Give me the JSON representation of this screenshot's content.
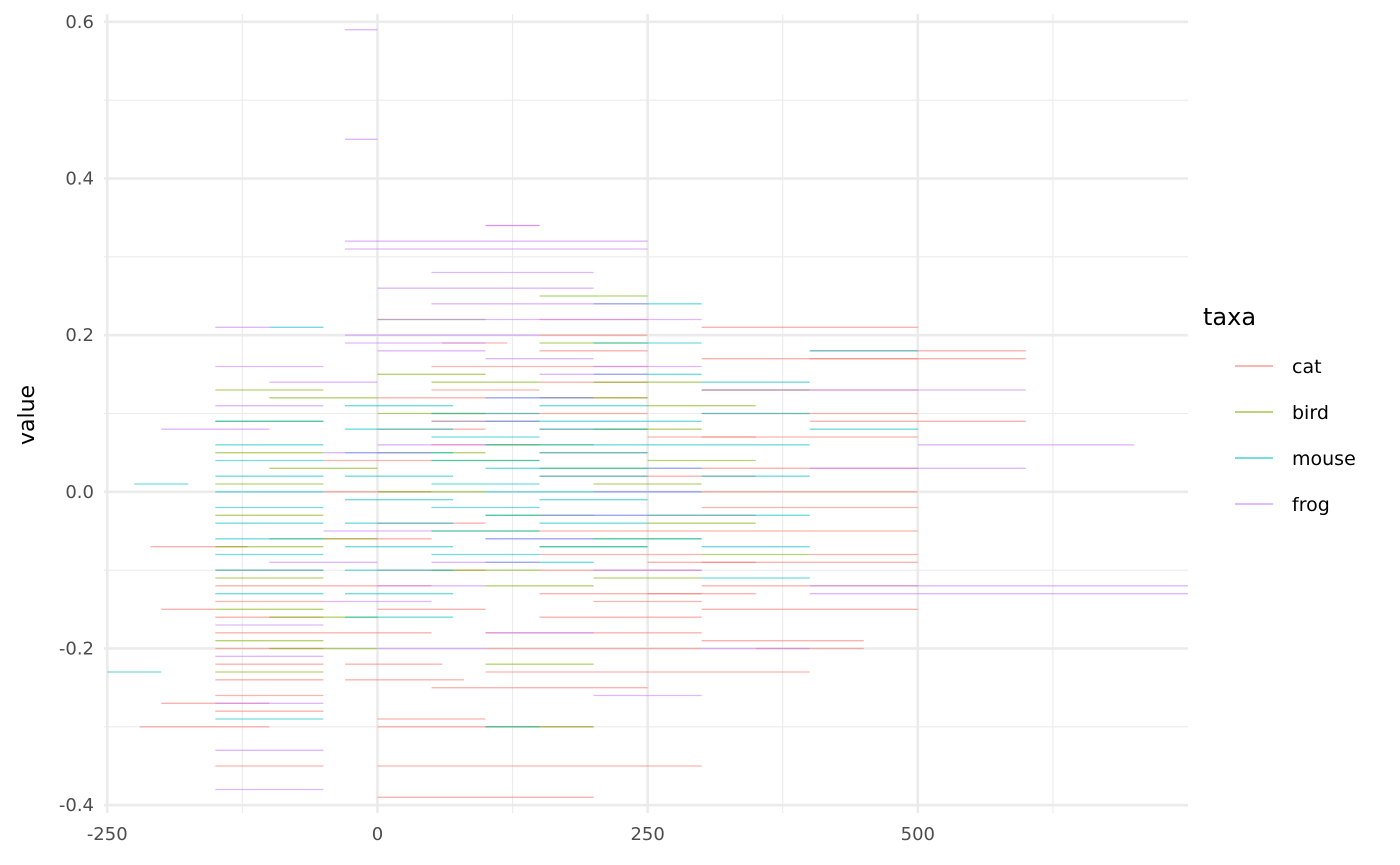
{
  "chart_data": {
    "type": "line",
    "title": "",
    "xlabel": "",
    "ylabel": "value",
    "xlim": [
      -253,
      750
    ],
    "ylim": [
      -0.41,
      0.61
    ],
    "x_ticks": [
      -250,
      0,
      250,
      500
    ],
    "x_tick_labels": [
      "-250",
      "0",
      "250",
      "500"
    ],
    "x_minor_ticks": [
      -125,
      125,
      375,
      625
    ],
    "y_ticks": [
      -0.4,
      -0.2,
      0.0,
      0.2,
      0.4,
      0.6
    ],
    "y_tick_labels": [
      "-0.4",
      "-0.2",
      "0.0",
      "0.2",
      "0.4",
      "0.6"
    ],
    "y_minor_ticks": [
      -0.3,
      -0.1,
      0.1,
      0.3,
      0.5
    ],
    "grid": true,
    "legend": {
      "title": "taxa",
      "position": "right"
    },
    "series": [
      {
        "name": "cat",
        "color": "#F8766D",
        "segments": [
          [
            -150,
            -50,
            -0.28
          ],
          [
            -150,
            -50,
            -0.26
          ],
          [
            -150,
            -50,
            -0.24
          ],
          [
            -150,
            -50,
            -0.22
          ],
          [
            -150,
            -50,
            -0.2
          ],
          [
            -150,
            -50,
            -0.18
          ],
          [
            -150,
            -50,
            -0.16
          ],
          [
            -150,
            -50,
            -0.14
          ],
          [
            -150,
            -50,
            -0.12
          ],
          [
            -150,
            -50,
            -0.1
          ],
          [
            -200,
            -100,
            -0.27
          ],
          [
            -220,
            -100,
            -0.3
          ],
          [
            -150,
            -50,
            -0.35
          ],
          [
            -200,
            -150,
            -0.15
          ],
          [
            -210,
            -120,
            -0.07
          ],
          [
            -30,
            80,
            -0.24
          ],
          [
            -30,
            60,
            -0.22
          ],
          [
            0,
            300,
            -0.35
          ],
          [
            0,
            200,
            -0.39
          ],
          [
            0,
            100,
            -0.29
          ],
          [
            0,
            200,
            -0.3
          ],
          [
            50,
            250,
            -0.25
          ],
          [
            100,
            300,
            -0.23
          ],
          [
            100,
            300,
            -0.2
          ],
          [
            100,
            300,
            -0.18
          ],
          [
            150,
            300,
            -0.16
          ],
          [
            150,
            300,
            -0.13
          ],
          [
            150,
            300,
            -0.1
          ],
          [
            150,
            300,
            -0.08
          ],
          [
            150,
            300,
            -0.05
          ],
          [
            150,
            250,
            0.02
          ],
          [
            150,
            250,
            0.05
          ],
          [
            150,
            250,
            0.08
          ],
          [
            150,
            250,
            0.1
          ],
          [
            150,
            250,
            0.12
          ],
          [
            150,
            250,
            0.14
          ],
          [
            150,
            250,
            0.16
          ],
          [
            150,
            250,
            0.18
          ],
          [
            150,
            250,
            0.2
          ],
          [
            150,
            250,
            0.22
          ],
          [
            50,
            150,
            0.06
          ],
          [
            50,
            150,
            0.1
          ],
          [
            50,
            150,
            0.13
          ],
          [
            50,
            150,
            0.16
          ],
          [
            60,
            120,
            0.19
          ],
          [
            300,
            500,
            0.21
          ],
          [
            300,
            500,
            0.17
          ],
          [
            300,
            500,
            0.13
          ],
          [
            300,
            500,
            0.1
          ],
          [
            300,
            500,
            0.07
          ],
          [
            300,
            500,
            0.03
          ],
          [
            300,
            500,
            0.0
          ],
          [
            300,
            500,
            -0.02
          ],
          [
            300,
            500,
            -0.05
          ],
          [
            300,
            500,
            -0.09
          ],
          [
            300,
            500,
            -0.12
          ],
          [
            300,
            500,
            -0.15
          ],
          [
            300,
            450,
            -0.19
          ],
          [
            350,
            450,
            -0.2
          ],
          [
            400,
            600,
            0.18
          ],
          [
            400,
            600,
            0.17
          ],
          [
            400,
            600,
            0.09
          ],
          [
            400,
            500,
            -0.08
          ],
          [
            300,
            400,
            -0.23
          ],
          [
            200,
            300,
            -0.14
          ],
          [
            -50,
            50,
            -0.18
          ],
          [
            -50,
            50,
            -0.12
          ],
          [
            -50,
            50,
            -0.06
          ],
          [
            -50,
            50,
            0.0
          ],
          [
            -50,
            50,
            0.04
          ],
          [
            250,
            350,
            0.07
          ],
          [
            250,
            350,
            0.02
          ],
          [
            250,
            350,
            -0.03
          ],
          [
            250,
            350,
            -0.09
          ],
          [
            250,
            350,
            -0.13
          ],
          [
            0,
            100,
            0.12
          ],
          [
            0,
            100,
            0.08
          ],
          [
            0,
            100,
            -0.04
          ],
          [
            0,
            100,
            -0.1
          ],
          [
            0,
            100,
            -0.15
          ]
        ]
      },
      {
        "name": "bird",
        "color": "#7CAE00",
        "segments": [
          [
            -150,
            -50,
            -0.23
          ],
          [
            -150,
            -50,
            -0.19
          ],
          [
            -150,
            -50,
            -0.15
          ],
          [
            -150,
            -50,
            -0.11
          ],
          [
            -150,
            -50,
            -0.07
          ],
          [
            -150,
            -50,
            -0.03
          ],
          [
            -150,
            -50,
            0.01
          ],
          [
            -150,
            -50,
            0.05
          ],
          [
            -150,
            -50,
            0.09
          ],
          [
            -150,
            -50,
            0.13
          ],
          [
            0,
            100,
            0.22
          ],
          [
            0,
            100,
            0.15
          ],
          [
            0,
            100,
            0.1
          ],
          [
            0,
            100,
            0.05
          ],
          [
            0,
            100,
            0.0
          ],
          [
            50,
            150,
            -0.05
          ],
          [
            50,
            150,
            -0.1
          ],
          [
            50,
            150,
            0.04
          ],
          [
            50,
            150,
            0.09
          ],
          [
            50,
            150,
            0.14
          ],
          [
            100,
            200,
            -0.3
          ],
          [
            100,
            200,
            -0.22
          ],
          [
            100,
            200,
            -0.12
          ],
          [
            100,
            200,
            -0.03
          ],
          [
            100,
            200,
            0.06
          ],
          [
            150,
            250,
            0.25
          ],
          [
            150,
            250,
            0.19
          ],
          [
            150,
            250,
            0.12
          ],
          [
            150,
            250,
            0.03
          ],
          [
            150,
            250,
            -0.07
          ],
          [
            200,
            300,
            0.14
          ],
          [
            200,
            300,
            0.08
          ],
          [
            200,
            300,
            0.01
          ],
          [
            200,
            300,
            -0.06
          ],
          [
            200,
            300,
            -0.11
          ],
          [
            250,
            350,
            0.11
          ],
          [
            250,
            350,
            0.04
          ],
          [
            250,
            350,
            -0.04
          ],
          [
            300,
            400,
            0.13
          ],
          [
            300,
            400,
            -0.08
          ],
          [
            -100,
            0,
            0.12
          ],
          [
            -100,
            0,
            0.03
          ],
          [
            -100,
            0,
            -0.06
          ],
          [
            -100,
            0,
            -0.16
          ],
          [
            -100,
            0,
            -0.2
          ]
        ]
      },
      {
        "name": "mouse",
        "color": "#00BFC4",
        "segments": [
          [
            -150,
            -50,
            0.06
          ],
          [
            -150,
            -50,
            0.04
          ],
          [
            -150,
            -50,
            0.02
          ],
          [
            -150,
            -50,
            0.0
          ],
          [
            -150,
            -50,
            -0.02
          ],
          [
            -150,
            -50,
            -0.04
          ],
          [
            -150,
            -50,
            -0.06
          ],
          [
            -150,
            -50,
            -0.08
          ],
          [
            -150,
            -50,
            -0.1
          ],
          [
            -150,
            -50,
            -0.13
          ],
          [
            -150,
            -50,
            0.09
          ],
          [
            -150,
            -50,
            -0.29
          ],
          [
            -225,
            -175,
            0.01
          ],
          [
            -250,
            -200,
            -0.23
          ],
          [
            -100,
            -50,
            0.21
          ],
          [
            -30,
            70,
            0.08
          ],
          [
            -30,
            70,
            0.05
          ],
          [
            -30,
            70,
            0.02
          ],
          [
            -30,
            70,
            -0.01
          ],
          [
            -30,
            70,
            -0.04
          ],
          [
            -30,
            70,
            -0.07
          ],
          [
            -30,
            70,
            -0.1
          ],
          [
            -30,
            70,
            0.11
          ],
          [
            -30,
            70,
            -0.13
          ],
          [
            -30,
            70,
            -0.16
          ],
          [
            50,
            150,
            0.07
          ],
          [
            50,
            150,
            0.04
          ],
          [
            50,
            150,
            0.01
          ],
          [
            50,
            150,
            -0.02
          ],
          [
            50,
            150,
            -0.05
          ],
          [
            50,
            150,
            -0.08
          ],
          [
            50,
            150,
            0.1
          ],
          [
            100,
            200,
            0.09
          ],
          [
            100,
            200,
            0.06
          ],
          [
            100,
            200,
            0.03
          ],
          [
            100,
            200,
            0.0
          ],
          [
            100,
            200,
            -0.03
          ],
          [
            100,
            200,
            -0.06
          ],
          [
            100,
            200,
            -0.09
          ],
          [
            100,
            200,
            0.12
          ],
          [
            150,
            250,
            0.08
          ],
          [
            150,
            250,
            0.05
          ],
          [
            150,
            250,
            0.02
          ],
          [
            150,
            250,
            -0.01
          ],
          [
            150,
            250,
            -0.04
          ],
          [
            150,
            250,
            -0.07
          ],
          [
            150,
            250,
            0.11
          ],
          [
            200,
            300,
            0.06
          ],
          [
            200,
            300,
            0.03
          ],
          [
            200,
            300,
            0.0
          ],
          [
            200,
            300,
            -0.03
          ],
          [
            200,
            300,
            -0.06
          ],
          [
            200,
            300,
            0.09
          ],
          [
            200,
            300,
            0.15
          ],
          [
            200,
            300,
            0.19
          ],
          [
            300,
            400,
            0.14
          ],
          [
            300,
            400,
            0.1
          ],
          [
            300,
            400,
            0.06
          ],
          [
            300,
            400,
            0.02
          ],
          [
            300,
            400,
            -0.03
          ],
          [
            300,
            400,
            -0.07
          ],
          [
            300,
            400,
            -0.11
          ],
          [
            400,
            500,
            0.18
          ],
          [
            400,
            500,
            0.08
          ],
          [
            200,
            300,
            0.24
          ],
          [
            100,
            150,
            -0.3
          ]
        ]
      },
      {
        "name": "frog",
        "color": "#C77CFF",
        "segments": [
          [
            -30,
            0,
            0.59
          ],
          [
            -30,
            0,
            0.45
          ],
          [
            -30,
            250,
            0.32
          ],
          [
            -30,
            250,
            0.31
          ],
          [
            100,
            150,
            0.34
          ],
          [
            100,
            150,
            0.34
          ],
          [
            50,
            200,
            0.28
          ],
          [
            0,
            200,
            0.26
          ],
          [
            50,
            250,
            0.24
          ],
          [
            0,
            300,
            0.22
          ],
          [
            -30,
            150,
            0.2
          ],
          [
            -30,
            100,
            0.19
          ],
          [
            -150,
            -100,
            0.21
          ],
          [
            -150,
            -50,
            0.16
          ],
          [
            -200,
            -100,
            0.08
          ],
          [
            -150,
            -50,
            0.11
          ],
          [
            -100,
            0,
            0.14
          ],
          [
            0,
            100,
            0.18
          ],
          [
            100,
            200,
            0.17
          ],
          [
            200,
            300,
            0.16
          ],
          [
            300,
            400,
            0.13
          ],
          [
            400,
            600,
            0.13
          ],
          [
            500,
            700,
            0.06
          ],
          [
            400,
            600,
            0.03
          ],
          [
            400,
            750,
            -0.12
          ],
          [
            400,
            750,
            -0.13
          ],
          [
            300,
            400,
            -0.2
          ],
          [
            200,
            300,
            -0.26
          ],
          [
            -150,
            -50,
            -0.38
          ],
          [
            -150,
            -50,
            -0.33
          ],
          [
            -150,
            -50,
            -0.27
          ],
          [
            -150,
            -50,
            -0.21
          ],
          [
            -150,
            -50,
            -0.17
          ],
          [
            -50,
            50,
            -0.14
          ],
          [
            0,
            100,
            -0.12
          ],
          [
            50,
            150,
            -0.09
          ],
          [
            100,
            200,
            -0.06
          ],
          [
            150,
            250,
            -0.03
          ],
          [
            200,
            300,
            0.0
          ],
          [
            250,
            300,
            0.03
          ],
          [
            0,
            100,
            0.06
          ],
          [
            50,
            150,
            0.09
          ],
          [
            100,
            200,
            0.12
          ],
          [
            150,
            250,
            0.15
          ],
          [
            -50,
            50,
            0.05
          ],
          [
            -50,
            50,
            -0.05
          ],
          [
            0,
            100,
            -0.2
          ],
          [
            100,
            200,
            -0.18
          ],
          [
            200,
            300,
            -0.1
          ],
          [
            -100,
            0,
            -0.09
          ]
        ]
      }
    ]
  }
}
